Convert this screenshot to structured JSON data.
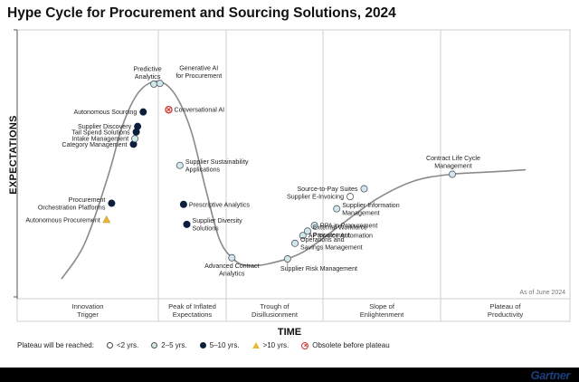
{
  "title": "Hype Cycle for Procurement and Sourcing Solutions, 2024",
  "chart_data": {
    "type": "hype-cycle",
    "y_axis_label": "EXPECTATIONS",
    "x_axis_label": "TIME",
    "as_of": "As of June 2024",
    "phases": [
      {
        "line1": "Innovation",
        "line2": "Trigger"
      },
      {
        "line1": "Peak of Inflated",
        "line2": "Expectations"
      },
      {
        "line1": "Trough of",
        "line2": "Disillusionment"
      },
      {
        "line1": "Slope of",
        "line2": "Enlightenment"
      },
      {
        "line1": "Plateau of",
        "line2": "Productivity"
      }
    ],
    "curve_points": [
      [
        0.0,
        0.04
      ],
      [
        0.05,
        0.2
      ],
      [
        0.1,
        0.5
      ],
      [
        0.13,
        0.72
      ],
      [
        0.16,
        0.86
      ],
      [
        0.19,
        0.92
      ],
      [
        0.22,
        0.92
      ],
      [
        0.25,
        0.85
      ],
      [
        0.28,
        0.7
      ],
      [
        0.31,
        0.45
      ],
      [
        0.34,
        0.22
      ],
      [
        0.37,
        0.13
      ],
      [
        0.4,
        0.1
      ],
      [
        0.45,
        0.11
      ],
      [
        0.52,
        0.16
      ],
      [
        0.6,
        0.28
      ],
      [
        0.68,
        0.4
      ],
      [
        0.76,
        0.48
      ],
      [
        0.84,
        0.51
      ],
      [
        0.92,
        0.52
      ],
      [
        1.0,
        0.53
      ]
    ],
    "technologies": [
      {
        "name1": "Autonomous Procurement",
        "name2": "",
        "status": ">10 yrs.",
        "x": 0.097,
        "y": 0.305,
        "label": "left"
      },
      {
        "name1": "Procurement",
        "name2": "Orchestration Platforms",
        "status": "5–10 yrs.",
        "x": 0.108,
        "y": 0.38,
        "label": "left"
      },
      {
        "name1": "Category Management",
        "name2": "",
        "status": "5–10 yrs.",
        "x": 0.155,
        "y": 0.645,
        "label": "left"
      },
      {
        "name1": "Intake Management",
        "name2": "",
        "status": "2–5 yrs.",
        "x": 0.158,
        "y": 0.67,
        "label": "left"
      },
      {
        "name1": "Tail Spend Solutions",
        "name2": "",
        "status": "5–10 yrs.",
        "x": 0.161,
        "y": 0.7,
        "label": "left"
      },
      {
        "name1": "Supplier Discovery",
        "name2": "",
        "status": "5–10 yrs.",
        "x": 0.164,
        "y": 0.725,
        "label": "left"
      },
      {
        "name1": "Autonomous Sourcing",
        "name2": "",
        "status": "5–10 yrs.",
        "x": 0.176,
        "y": 0.79,
        "label": "left"
      },
      {
        "name1": "Predictive",
        "name2": "Analytics",
        "status": "2–5 yrs.",
        "x": 0.199,
        "y": 0.915,
        "label": "topleft"
      },
      {
        "name1": "Generative AI",
        "name2": "for Procurement",
        "status": "2–5 yrs.",
        "x": 0.212,
        "y": 0.918,
        "label": "topright"
      },
      {
        "name1": "Conversational AI",
        "name2": "",
        "status": "Obsolete before plateau",
        "x": 0.231,
        "y": 0.8,
        "label": "right"
      },
      {
        "name1": "Supplier Sustainability",
        "name2": "Applications",
        "status": "2–5 yrs.",
        "x": 0.255,
        "y": 0.55,
        "label": "right"
      },
      {
        "name1": "Prescriptive Analytics",
        "name2": "",
        "status": "5–10 yrs.",
        "x": 0.263,
        "y": 0.375,
        "label": "right"
      },
      {
        "name1": "Supplier Diversity",
        "name2": "Solutions",
        "status": "5–10 yrs.",
        "x": 0.27,
        "y": 0.285,
        "label": "right"
      },
      {
        "name1": "Advanced Contract",
        "name2": "Analytics",
        "status": "2–5 yrs.",
        "x": 0.367,
        "y": 0.135,
        "label": "below"
      },
      {
        "name1": "Supplier Risk Management",
        "name2": "",
        "status": "2–5 yrs.",
        "x": 0.487,
        "y": 0.13,
        "label": "below"
      },
      {
        "name1": "Operations and",
        "name2": "Savings Management",
        "status": "2–5 yrs.",
        "x": 0.503,
        "y": 0.2,
        "label": "right"
      },
      {
        "name1": "AP Invoice Automation",
        "name2": "",
        "status": "2–5 yrs.",
        "x": 0.52,
        "y": 0.235,
        "label": "right"
      },
      {
        "name1": "External Workforce",
        "name2": "Procurement",
        "status": "2–5 yrs.",
        "x": 0.53,
        "y": 0.255,
        "label": "right"
      },
      {
        "name1": "RPA in Procurement",
        "name2": "",
        "status": "2–5 yrs.",
        "x": 0.545,
        "y": 0.28,
        "label": "right"
      },
      {
        "name1": "Supplier Information",
        "name2": "Management",
        "status": "2–5 yrs.",
        "x": 0.593,
        "y": 0.355,
        "label": "right"
      },
      {
        "name1": "Supplier E-Invoicing",
        "name2": "",
        "status": "<2 yrs.",
        "x": 0.622,
        "y": 0.41,
        "label": "left"
      },
      {
        "name1": "Source-to-Pay Suites",
        "name2": "",
        "status": "2–5 yrs.",
        "x": 0.652,
        "y": 0.445,
        "label": "left"
      },
      {
        "name1": "Contract Life Cycle",
        "name2": "Management",
        "status": "2–5 yrs.",
        "x": 0.842,
        "y": 0.51,
        "label": "above"
      }
    ]
  },
  "legend": {
    "label": "Plateau will be reached:",
    "items": [
      {
        "symbol": "white",
        "text": "<2 yrs."
      },
      {
        "symbol": "light",
        "text": "2–5 yrs."
      },
      {
        "symbol": "navy",
        "text": "5–10 yrs."
      },
      {
        "symbol": "triangle",
        "text": ">10 yrs."
      },
      {
        "symbol": "x",
        "text": "Obsolete before plateau"
      }
    ]
  },
  "colors": {
    "navy": "#0b1f3c",
    "light": "#cfe8ea",
    "white": "#ffffff",
    "triangle": "#e8b83a",
    "obsolete": "#d2332f",
    "curve": "#8a8a8a"
  },
  "logo_text": "Gartner"
}
